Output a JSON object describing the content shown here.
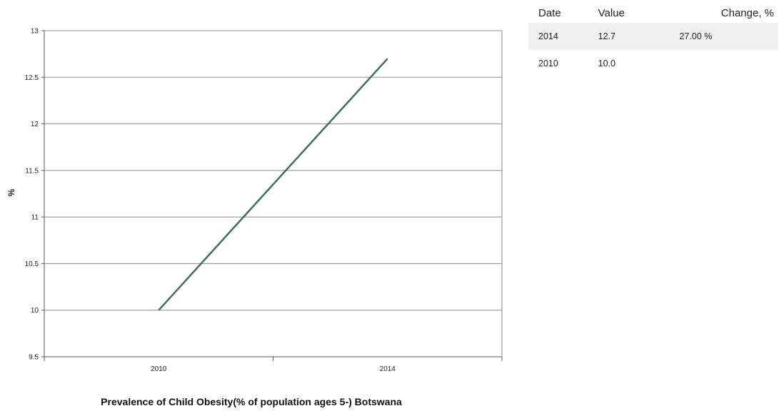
{
  "chart_data": {
    "type": "line",
    "title": "Prevalence of Child Obesity(% of population ages 5-) Botswana",
    "ylabel": "%",
    "xlabel": "",
    "categories": [
      "2010",
      "2014"
    ],
    "series": [
      {
        "color": "#3f6f5a",
        "values": [
          10.0,
          12.7
        ]
      }
    ],
    "ylim": [
      9.5,
      13
    ],
    "yticks": [
      "9.5",
      "10",
      "10.5",
      "11",
      "11.5",
      "12",
      "12.5",
      "13"
    ],
    "grid": true
  },
  "table": {
    "headers": [
      "Date",
      "Value",
      "Change, %"
    ],
    "rows": [
      [
        "2014",
        "12.7",
        "27.00 %"
      ],
      [
        "2010",
        "10.0",
        ""
      ]
    ]
  }
}
